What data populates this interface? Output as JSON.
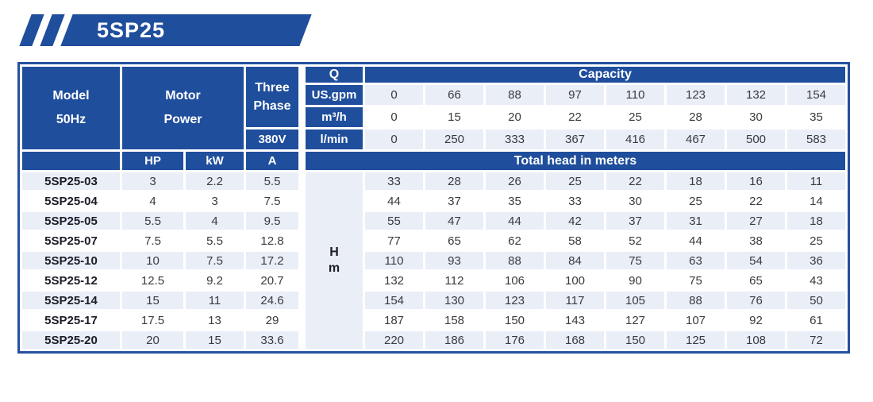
{
  "badge": {
    "title": "5SP25"
  },
  "colors": {
    "primary_blue": "#1f4e9c",
    "light_row": "#e9eef7",
    "border_white": "#ffffff"
  },
  "table": {
    "header": {
      "model_line1": "Model",
      "model_line2": "50Hz",
      "motor_line1": "Motor",
      "motor_line2": "Power",
      "phase_line1": "Three",
      "phase_line2": "Phase",
      "voltage": "380V",
      "q_label": "Q",
      "capacity_label": "Capacity",
      "hp_label": "HP",
      "kw_label": "kW",
      "amp_label": "A",
      "total_head_label": "Total head in meters",
      "hm_line1": "H",
      "hm_line2": "m"
    },
    "capacity_rows": [
      {
        "unit": "US.gpm",
        "values": [
          "0",
          "66",
          "88",
          "97",
          "110",
          "123",
          "132",
          "154"
        ]
      },
      {
        "unit": "m³/h",
        "values": [
          "0",
          "15",
          "20",
          "22",
          "25",
          "28",
          "30",
          "35"
        ]
      },
      {
        "unit": "l/min",
        "values": [
          "0",
          "250",
          "333",
          "367",
          "416",
          "467",
          "500",
          "583"
        ]
      }
    ],
    "rows": [
      {
        "model": "5SP25-03",
        "hp": "3",
        "kw": "2.2",
        "a": "5.5",
        "head": [
          "33",
          "28",
          "26",
          "25",
          "22",
          "18",
          "16",
          "11"
        ]
      },
      {
        "model": "5SP25-04",
        "hp": "4",
        "kw": "3",
        "a": "7.5",
        "head": [
          "44",
          "37",
          "35",
          "33",
          "30",
          "25",
          "22",
          "14"
        ]
      },
      {
        "model": "5SP25-05",
        "hp": "5.5",
        "kw": "4",
        "a": "9.5",
        "head": [
          "55",
          "47",
          "44",
          "42",
          "37",
          "31",
          "27",
          "18"
        ]
      },
      {
        "model": "5SP25-07",
        "hp": "7.5",
        "kw": "5.5",
        "a": "12.8",
        "head": [
          "77",
          "65",
          "62",
          "58",
          "52",
          "44",
          "38",
          "25"
        ]
      },
      {
        "model": "5SP25-10",
        "hp": "10",
        "kw": "7.5",
        "a": "17.2",
        "head": [
          "110",
          "93",
          "88",
          "84",
          "75",
          "63",
          "54",
          "36"
        ]
      },
      {
        "model": "5SP25-12",
        "hp": "12.5",
        "kw": "9.2",
        "a": "20.7",
        "head": [
          "132",
          "112",
          "106",
          "100",
          "90",
          "75",
          "65",
          "43"
        ]
      },
      {
        "model": "5SP25-14",
        "hp": "15",
        "kw": "11",
        "a": "24.6",
        "head": [
          "154",
          "130",
          "123",
          "117",
          "105",
          "88",
          "76",
          "50"
        ]
      },
      {
        "model": "5SP25-17",
        "hp": "17.5",
        "kw": "13",
        "a": "29",
        "head": [
          "187",
          "158",
          "150",
          "143",
          "127",
          "107",
          "92",
          "61"
        ]
      },
      {
        "model": "5SP25-20",
        "hp": "20",
        "kw": "15",
        "a": "33.6",
        "head": [
          "220",
          "186",
          "176",
          "168",
          "150",
          "125",
          "108",
          "72"
        ]
      }
    ]
  }
}
